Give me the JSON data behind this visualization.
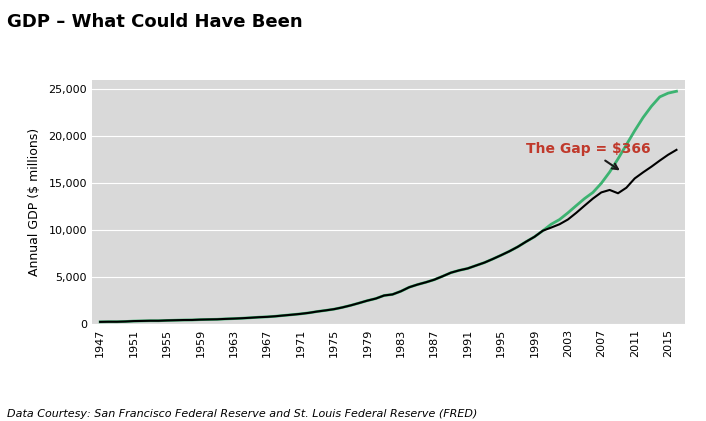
{
  "title": "GDP – What Could Have Been",
  "ylabel": "Annual GDP ($ millions)",
  "footnote": "Data Courtesy: San Francisco Federal Reserve and St. Louis Federal Reserve (FRED)",
  "annotation_text": "The Gap = $366",
  "bg_color": "#d9d9d9",
  "actual_color": "#000000",
  "potential_color": "#3cb371",
  "arrow_color": "#1a1a1a",
  "annotation_color": "#c0392b",
  "years_actual": [
    1947,
    1948,
    1949,
    1950,
    1951,
    1952,
    1953,
    1954,
    1955,
    1956,
    1957,
    1958,
    1959,
    1960,
    1961,
    1962,
    1963,
    1964,
    1965,
    1966,
    1967,
    1968,
    1969,
    1970,
    1971,
    1972,
    1973,
    1974,
    1975,
    1976,
    1977,
    1978,
    1979,
    1980,
    1981,
    1982,
    1983,
    1984,
    1985,
    1986,
    1987,
    1988,
    1989,
    1990,
    1991,
    1992,
    1993,
    1994,
    1995,
    1996,
    1997,
    1998,
    1999,
    2000,
    2001,
    2002,
    2003,
    2004,
    2005,
    2006,
    2007,
    2008,
    2009,
    2010,
    2011,
    2012,
    2013,
    2014,
    2015,
    2016
  ],
  "values_actual": [
    244,
    259,
    258,
    284,
    328,
    345,
    364,
    364,
    397,
    419,
    441,
    447,
    483,
    503,
    519,
    560,
    591,
    633,
    683,
    741,
    779,
    844,
    930,
    1010,
    1097,
    1207,
    1349,
    1467,
    1598,
    1783,
    2000,
    2249,
    2508,
    2726,
    3054,
    3166,
    3501,
    3931,
    4218,
    4460,
    4736,
    5100,
    5483,
    5734,
    5932,
    6244,
    6553,
    6936,
    7341,
    7764,
    8237,
    8786,
    9303,
    9951,
    10286,
    10640,
    11142,
    11853,
    12623,
    13377,
    14029,
    14292,
    13939,
    14527,
    15518,
    16163,
    16768,
    17419,
    18037,
    18561
  ],
  "years_potential": [
    1947,
    1948,
    1949,
    1950,
    1951,
    1952,
    1953,
    1954,
    1955,
    1956,
    1957,
    1958,
    1959,
    1960,
    1961,
    1962,
    1963,
    1964,
    1965,
    1966,
    1967,
    1968,
    1969,
    1970,
    1971,
    1972,
    1973,
    1974,
    1975,
    1976,
    1977,
    1978,
    1979,
    1980,
    1981,
    1982,
    1983,
    1984,
    1985,
    1986,
    1987,
    1988,
    1989,
    1990,
    1991,
    1992,
    1993,
    1994,
    1995,
    1996,
    1997,
    1998,
    1999,
    2000,
    2001,
    2002,
    2003,
    2004,
    2005,
    2006,
    2007,
    2008,
    2009,
    2010,
    2011,
    2012,
    2013,
    2014,
    2015,
    2016
  ],
  "values_potential": [
    244,
    259,
    258,
    284,
    328,
    345,
    364,
    364,
    397,
    419,
    441,
    447,
    483,
    503,
    519,
    560,
    591,
    633,
    683,
    741,
    779,
    844,
    930,
    1010,
    1097,
    1207,
    1349,
    1467,
    1598,
    1783,
    2000,
    2249,
    2508,
    2726,
    3054,
    3166,
    3501,
    3931,
    4218,
    4460,
    4736,
    5100,
    5483,
    5734,
    5932,
    6244,
    6553,
    6936,
    7341,
    7764,
    8237,
    8786,
    9303,
    9951,
    10640,
    11142,
    11853,
    12623,
    13377,
    14029,
    15000,
    16200,
    17600,
    19100,
    20600,
    22000,
    23200,
    24200,
    24600,
    24800
  ],
  "ylim_min": 0,
  "ylim_max": 26000,
  "yticks": [
    0,
    5000,
    10000,
    15000,
    20000,
    25000
  ],
  "xlim_min": 1946,
  "xlim_max": 2017,
  "xtick_years": [
    1947,
    1951,
    1955,
    1959,
    1963,
    1967,
    1971,
    1975,
    1979,
    1983,
    1987,
    1991,
    1995,
    1999,
    2003,
    2007,
    2011,
    2015
  ],
  "title_fontsize": 13,
  "label_fontsize": 9,
  "tick_fontsize": 8,
  "footnote_fontsize": 8,
  "annotation_fontsize": 10
}
